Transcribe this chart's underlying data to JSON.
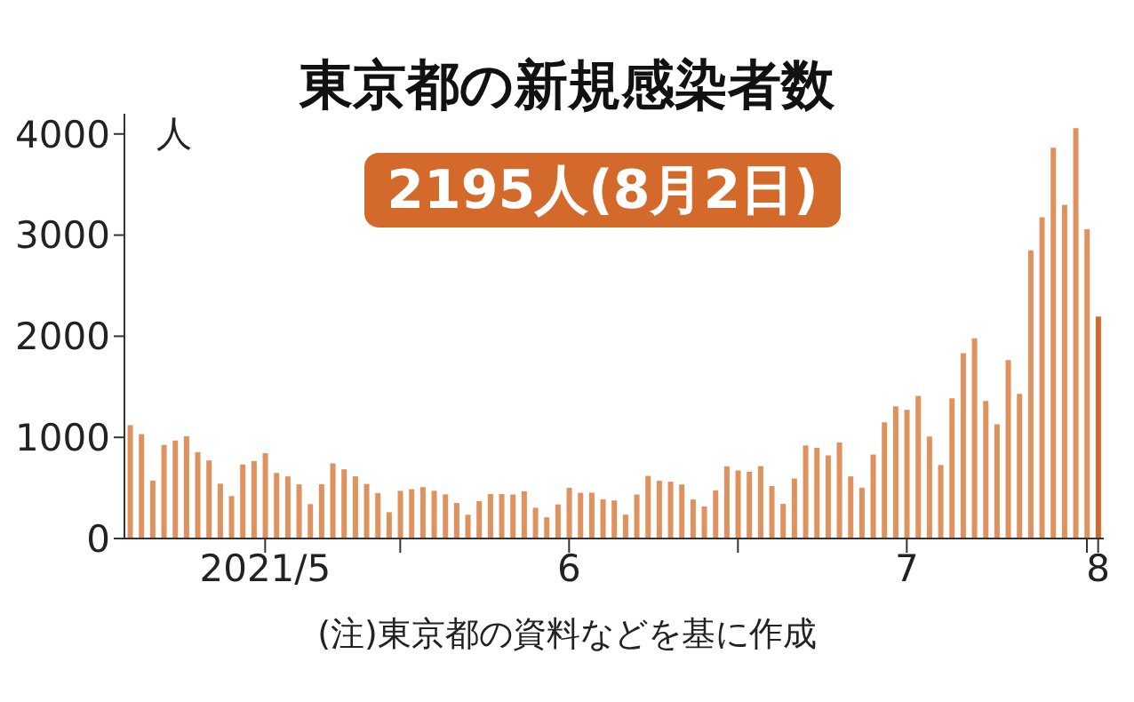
{
  "chart_data": {
    "type": "bar",
    "title": "東京都の新規感染者数",
    "subtitle": "2195人(8月2日)",
    "ylabel": "人",
    "annotations": [
      "(注)東京都の資料などを基に作成"
    ],
    "x": [
      "2021-05-08",
      "2021-05-09",
      "2021-05-10",
      "2021-05-11",
      "2021-05-12",
      "2021-05-13",
      "2021-05-14",
      "2021-05-15",
      "2021-05-16",
      "2021-05-17",
      "2021-05-18",
      "2021-05-19",
      "2021-05-20",
      "2021-05-21",
      "2021-05-22",
      "2021-05-23",
      "2021-05-24",
      "2021-05-25",
      "2021-05-26",
      "2021-05-27",
      "2021-05-28",
      "2021-05-29",
      "2021-05-30",
      "2021-05-31",
      "2021-06-01",
      "2021-06-02",
      "2021-06-03",
      "2021-06-04",
      "2021-06-05",
      "2021-06-06",
      "2021-06-07",
      "2021-06-08",
      "2021-06-09",
      "2021-06-10",
      "2021-06-11",
      "2021-06-12",
      "2021-06-13",
      "2021-06-14",
      "2021-06-15",
      "2021-06-16",
      "2021-06-17",
      "2021-06-18",
      "2021-06-19",
      "2021-06-20",
      "2021-06-21",
      "2021-06-22",
      "2021-06-23",
      "2021-06-24",
      "2021-06-25",
      "2021-06-26",
      "2021-06-27",
      "2021-06-28",
      "2021-06-29",
      "2021-06-30",
      "2021-07-01",
      "2021-07-02",
      "2021-07-03",
      "2021-07-04",
      "2021-07-05",
      "2021-07-06",
      "2021-07-07",
      "2021-07-08",
      "2021-07-09",
      "2021-07-10",
      "2021-07-11",
      "2021-07-12",
      "2021-07-13",
      "2021-07-14",
      "2021-07-15",
      "2021-07-16",
      "2021-07-17",
      "2021-07-18",
      "2021-07-19",
      "2021-07-20",
      "2021-07-21",
      "2021-07-22",
      "2021-07-23",
      "2021-07-24",
      "2021-07-25",
      "2021-07-26",
      "2021-07-27",
      "2021-07-28",
      "2021-07-29",
      "2021-07-30",
      "2021-07-31",
      "2021-08-01",
      "2021-08-02"
    ],
    "values": [
      1121,
      1032,
      573,
      925,
      969,
      1010,
      854,
      772,
      542,
      419,
      732,
      766,
      843,
      648,
      614,
      535,
      340,
      537,
      743,
      684,
      614,
      539,
      449,
      260,
      471,
      487,
      508,
      472,
      436,
      351,
      235,
      369,
      440,
      439,
      435,
      467,
      304,
      209,
      337,
      501,
      452,
      453,
      388,
      376,
      236,
      435,
      619,
      570,
      562,
      534,
      386,
      317,
      476,
      714,
      673,
      660,
      716,
      518,
      342,
      593,
      920,
      896,
      822,
      950,
      614,
      502,
      830,
      1149,
      1308,
      1271,
      1410,
      1008,
      727,
      1387,
      1832,
      1979,
      1359,
      1128,
      1763,
      1429,
      2848,
      3177,
      3865,
      3300,
      4058,
      3058,
      2195
    ],
    "colors": [
      "#df915e",
      "#df915e",
      "#df915e",
      "#df915e",
      "#df915e",
      "#df915e",
      "#df915e",
      "#df915e",
      "#df915e",
      "#df915e",
      "#df915e",
      "#df915e",
      "#df915e",
      "#df915e",
      "#df915e",
      "#df915e",
      "#df915e",
      "#df915e",
      "#df915e",
      "#df915e",
      "#df915e",
      "#df915e",
      "#df915e",
      "#df915e",
      "#df915e",
      "#df915e",
      "#df915e",
      "#df915e",
      "#df915e",
      "#df915e",
      "#df915e",
      "#df915e",
      "#df915e",
      "#df915e",
      "#df915e",
      "#df915e",
      "#df915e",
      "#df915e",
      "#df915e",
      "#df915e",
      "#df915e",
      "#df915e",
      "#df915e",
      "#df915e",
      "#df915e",
      "#df915e",
      "#df915e",
      "#df915e",
      "#df915e",
      "#df915e",
      "#df915e",
      "#df915e",
      "#df915e",
      "#df915e",
      "#df915e",
      "#df915e",
      "#df915e",
      "#df915e",
      "#df915e",
      "#df915e",
      "#df915e",
      "#df915e",
      "#df915e",
      "#df915e",
      "#df915e",
      "#df915e",
      "#df915e",
      "#df915e",
      "#df915e",
      "#df915e",
      "#df915e",
      "#df915e",
      "#df915e",
      "#df915e",
      "#df915e",
      "#df915e",
      "#df915e",
      "#df915e",
      "#df915e",
      "#df915e",
      "#df915e",
      "#df915e",
      "#df915e",
      "#df915e",
      "#df915e",
      "#df915e",
      "#d4692c"
    ],
    "xlim": [
      "2021-05-07T12:00",
      "2021-08-02T12:00"
    ],
    "xticks": [
      {
        "value": "2021-05-20",
        "label": "2021/5"
      },
      {
        "value": "2021-06-01",
        "label": null
      },
      {
        "value": "2021-06-16",
        "label": "6"
      },
      {
        "value": "2021-07-01",
        "label": null
      },
      {
        "value": "2021-07-16",
        "label": "7"
      },
      {
        "value": "2021-08-01",
        "label": null
      },
      {
        "value": "2021-08-02",
        "label": "8"
      }
    ],
    "ylim": [
      0,
      4200
    ],
    "yticks": [
      0,
      1000,
      2000,
      3000,
      4000
    ],
    "grid": false,
    "legend": false
  }
}
